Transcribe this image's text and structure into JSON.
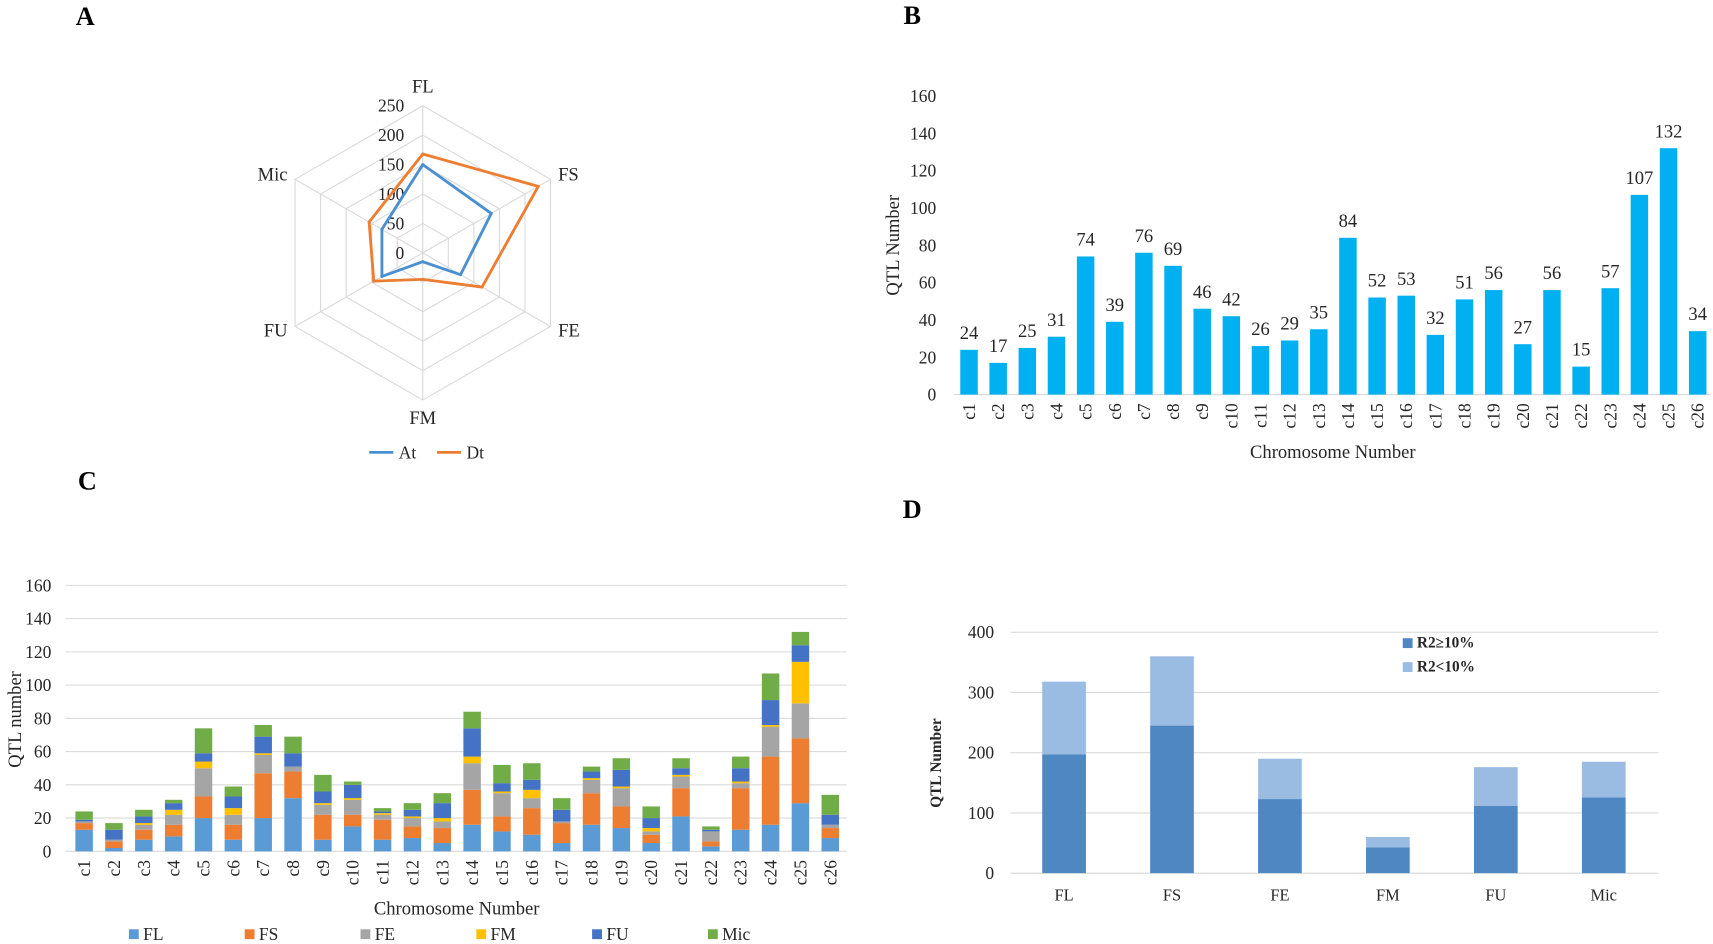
{
  "chart_data": [
    {
      "panel_label": "A",
      "type": "radar",
      "categories": [
        "FL",
        "FS",
        "FE",
        "FM",
        "FU",
        "Mic"
      ],
      "series": [
        {
          "name": "At",
          "color": "#4A8FD0",
          "values": [
            150,
            134,
            74,
            15,
            80,
            80
          ]
        },
        {
          "name": "Dt",
          "color": "#ED7D31",
          "values": [
            168,
            226,
            116,
            45,
            96,
            105
          ]
        }
      ],
      "rlim": [
        0,
        250
      ],
      "rticks": [
        0,
        50,
        100,
        150,
        200,
        250
      ],
      "legend": "bottom",
      "grid": true
    },
    {
      "panel_label": "B",
      "type": "bar",
      "categories": [
        "c1",
        "c2",
        "c3",
        "c4",
        "c5",
        "c6",
        "c7",
        "c8",
        "c9",
        "c10",
        "c11",
        "c12",
        "c13",
        "c14",
        "c15",
        "c16",
        "c17",
        "c18",
        "c19",
        "c20",
        "c21",
        "c22",
        "c23",
        "c24",
        "c25",
        "c26"
      ],
      "values": [
        24,
        17,
        25,
        31,
        74,
        39,
        76,
        69,
        46,
        42,
        26,
        29,
        35,
        84,
        52,
        53,
        32,
        51,
        56,
        27,
        56,
        15,
        57,
        107,
        132,
        34
      ],
      "color": "#00B0F0",
      "xlabel": "Chromosome Number",
      "ylabel": "QTL Number",
      "ylim": [
        0,
        160
      ],
      "yticks": [
        0,
        20,
        40,
        60,
        80,
        100,
        120,
        140,
        160
      ],
      "data_labels": true,
      "grid": false
    },
    {
      "panel_label": "C",
      "type": "bar",
      "stacked": true,
      "categories": [
        "c1",
        "c2",
        "c3",
        "c4",
        "c5",
        "c6",
        "c7",
        "c8",
        "c9",
        "c10",
        "c11",
        "c12",
        "c13",
        "c14",
        "c15",
        "c16",
        "c17",
        "c18",
        "c19",
        "c20",
        "c21",
        "c22",
        "c23",
        "c24",
        "c25",
        "c26"
      ],
      "series": [
        {
          "name": "FL",
          "color": "#5B9BD5",
          "values": [
            13,
            2,
            7,
            9,
            20,
            7,
            20,
            32,
            7,
            15,
            7,
            8,
            5,
            16,
            12,
            10,
            5,
            16,
            14,
            5,
            21,
            3,
            13,
            16,
            29,
            8
          ]
        },
        {
          "name": "FS",
          "color": "#ED7D31",
          "values": [
            4,
            4,
            6,
            7,
            13,
            9,
            27,
            16,
            15,
            7,
            12,
            7,
            9,
            21,
            9,
            16,
            12,
            19,
            13,
            5,
            17,
            3,
            25,
            41,
            39,
            6
          ]
        },
        {
          "name": "FE",
          "color": "#A5A5A5",
          "values": [
            1,
            1,
            3,
            6,
            17,
            6,
            11,
            3,
            6,
            9,
            3,
            5,
            4,
            16,
            14,
            6,
            1,
            8,
            11,
            2,
            7,
            6,
            3,
            18,
            21,
            2
          ]
        },
        {
          "name": "FM",
          "color": "#FFC000",
          "values": [
            0,
            0,
            1,
            3,
            4,
            4,
            1,
            0,
            1,
            1,
            1,
            1,
            2,
            4,
            1,
            5,
            0,
            1,
            1,
            2,
            1,
            0,
            1,
            1,
            25,
            0
          ]
        },
        {
          "name": "FU",
          "color": "#4472C4",
          "values": [
            1,
            6,
            4,
            4,
            5,
            7,
            10,
            8,
            7,
            8,
            1,
            4,
            9,
            17,
            5,
            6,
            7,
            4,
            10,
            6,
            4,
            1,
            8,
            15,
            10,
            6
          ]
        },
        {
          "name": "Mic",
          "color": "#70AD47",
          "values": [
            5,
            4,
            4,
            2,
            15,
            6,
            7,
            10,
            10,
            2,
            2,
            4,
            6,
            10,
            11,
            10,
            7,
            3,
            7,
            7,
            6,
            2,
            7,
            16,
            8,
            12
          ]
        }
      ],
      "xlabel": "Chromosome Number",
      "ylabel": "QTL number",
      "ylim": [
        0,
        160
      ],
      "yticks": [
        0,
        20,
        40,
        60,
        80,
        100,
        120,
        140,
        160
      ],
      "legend": "bottom",
      "grid": true
    },
    {
      "panel_label": "D",
      "type": "bar",
      "stacked": true,
      "categories": [
        "FL",
        "FS",
        "FE",
        "FM",
        "FU",
        "Mic"
      ],
      "series": [
        {
          "name": "R2≥10%",
          "color": "#4F87C3",
          "values": [
            197,
            245,
            123,
            43,
            112,
            126
          ]
        },
        {
          "name": "R2<10%",
          "color": "#9BBCE2",
          "values": [
            121,
            115,
            67,
            17,
            64,
            59
          ]
        }
      ],
      "ylabel": "QTL Number",
      "ylim": [
        0,
        400
      ],
      "yticks": [
        0,
        100,
        200,
        300,
        400
      ],
      "legend": "top-right",
      "grid": true
    }
  ]
}
